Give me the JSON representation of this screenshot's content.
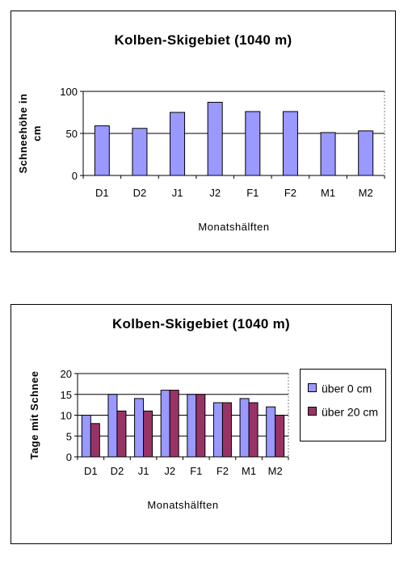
{
  "colors": {
    "series1": "#9999ff",
    "series2": "#993366",
    "gridline": "#000000",
    "background": "#ffffff"
  },
  "chart_data": [
    {
      "type": "bar",
      "title": "Kolben-Skigebiet (1040 m)",
      "xlabel": "Monatshälften",
      "ylabel": "Schneehöhe in cm",
      "ylabel_lines": [
        "Schneehöhe in",
        "cm"
      ],
      "categories": [
        "D1",
        "D2",
        "J1",
        "J2",
        "F1",
        "F2",
        "M1",
        "M2"
      ],
      "yticks": [
        "0",
        "50",
        "100"
      ],
      "ylim": [
        0,
        100
      ],
      "grid": true,
      "legend": "none",
      "series": [
        {
          "values": [
            59,
            56,
            75,
            87,
            76,
            76,
            51,
            53
          ],
          "color": "#9999ff"
        }
      ]
    },
    {
      "type": "bar",
      "title": "Kolben-Skigebiet (1040 m)",
      "xlabel": "Monatshälften",
      "ylabel": "Tage mit Schnee",
      "categories": [
        "D1",
        "D2",
        "J1",
        "J2",
        "F1",
        "F2",
        "M1",
        "M2"
      ],
      "yticks": [
        "0",
        "5",
        "10",
        "15",
        "20"
      ],
      "ylim": [
        0,
        20
      ],
      "grid": true,
      "legend": "right",
      "series": [
        {
          "name": "über 0 cm",
          "values": [
            10,
            15,
            14,
            16,
            15,
            13,
            14,
            12
          ],
          "color": "#9999ff"
        },
        {
          "name": "über 20 cm",
          "values": [
            8,
            11,
            11,
            16,
            15,
            13,
            13,
            10
          ],
          "color": "#993366"
        }
      ]
    }
  ]
}
